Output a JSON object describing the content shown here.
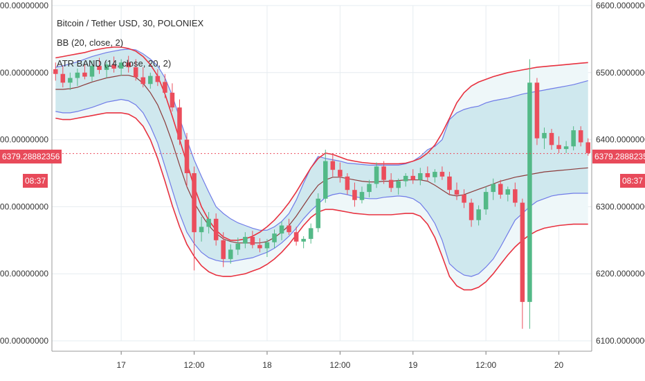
{
  "legend": {
    "title": "Bitcoin / Tether USD, 30, POLONIEX",
    "bb": "BB (20, close, 2)",
    "atr": "ATR BAND (14, close, 20, 2)"
  },
  "price_tag": {
    "value": "6379.28882356",
    "countdown": "08:37"
  },
  "colors": {
    "up": "#53b987",
    "down": "#eb4d5c",
    "bb": "#6f7be8",
    "atr": "#e8313f",
    "basis": "#8b3a3a",
    "bb_fill": "#cfe8ee",
    "atr_fill": "#eef7f9"
  },
  "chart_data": {
    "type": "candlestick",
    "title": "Bitcoin / Tether USD, 30, POLONIEX",
    "ylim": [
      6100,
      6600
    ],
    "y_ticks": [
      6100,
      6200,
      6300,
      6400,
      6500,
      6600
    ],
    "y_tick_labels": [
      "6100.00000000",
      "6200.00000000",
      "6300.00000000",
      "6400.00000000",
      "6500.00000000",
      "6600.00000000"
    ],
    "x_ticks": [
      {
        "index": 9,
        "label": "17"
      },
      {
        "index": 19,
        "label": "12:00"
      },
      {
        "index": 29,
        "label": "18"
      },
      {
        "index": 39,
        "label": "12:00"
      },
      {
        "index": 49,
        "label": "19"
      },
      {
        "index": 59,
        "label": "12:00"
      },
      {
        "index": 69,
        "label": "20"
      }
    ],
    "last_price": 6379.28882356,
    "candles": [
      {
        "o": 6505,
        "h": 6515,
        "l": 6488,
        "c": 6498
      },
      {
        "o": 6498,
        "h": 6510,
        "l": 6478,
        "c": 6485
      },
      {
        "o": 6485,
        "h": 6500,
        "l": 6474,
        "c": 6492
      },
      {
        "o": 6492,
        "h": 6506,
        "l": 6480,
        "c": 6500
      },
      {
        "o": 6500,
        "h": 6512,
        "l": 6490,
        "c": 6494
      },
      {
        "o": 6494,
        "h": 6518,
        "l": 6487,
        "c": 6510
      },
      {
        "o": 6510,
        "h": 6522,
        "l": 6498,
        "c": 6504
      },
      {
        "o": 6504,
        "h": 6516,
        "l": 6492,
        "c": 6512
      },
      {
        "o": 6512,
        "h": 6524,
        "l": 6500,
        "c": 6506
      },
      {
        "o": 6506,
        "h": 6520,
        "l": 6495,
        "c": 6515
      },
      {
        "o": 6515,
        "h": 6525,
        "l": 6500,
        "c": 6508
      },
      {
        "o": 6508,
        "h": 6520,
        "l": 6488,
        "c": 6493
      },
      {
        "o": 6493,
        "h": 6508,
        "l": 6478,
        "c": 6483
      },
      {
        "o": 6483,
        "h": 6500,
        "l": 6476,
        "c": 6495
      },
      {
        "o": 6495,
        "h": 6505,
        "l": 6480,
        "c": 6486
      },
      {
        "o": 6486,
        "h": 6498,
        "l": 6462,
        "c": 6470
      },
      {
        "o": 6470,
        "h": 6484,
        "l": 6442,
        "c": 6448
      },
      {
        "o": 6448,
        "h": 6460,
        "l": 6392,
        "c": 6400
      },
      {
        "o": 6400,
        "h": 6410,
        "l": 6330,
        "c": 6350
      },
      {
        "o": 6350,
        "h": 6360,
        "l": 6205,
        "c": 6262
      },
      {
        "o": 6262,
        "h": 6285,
        "l": 6248,
        "c": 6270
      },
      {
        "o": 6270,
        "h": 6292,
        "l": 6260,
        "c": 6282
      },
      {
        "o": 6282,
        "h": 6290,
        "l": 6242,
        "c": 6250
      },
      {
        "o": 6250,
        "h": 6262,
        "l": 6210,
        "c": 6222
      },
      {
        "o": 6222,
        "h": 6244,
        "l": 6215,
        "c": 6236
      },
      {
        "o": 6236,
        "h": 6254,
        "l": 6228,
        "c": 6245
      },
      {
        "o": 6245,
        "h": 6262,
        "l": 6238,
        "c": 6255
      },
      {
        "o": 6255,
        "h": 6264,
        "l": 6238,
        "c": 6243
      },
      {
        "o": 6243,
        "h": 6253,
        "l": 6232,
        "c": 6238
      },
      {
        "o": 6238,
        "h": 6252,
        "l": 6225,
        "c": 6247
      },
      {
        "o": 6247,
        "h": 6266,
        "l": 6238,
        "c": 6260
      },
      {
        "o": 6260,
        "h": 6278,
        "l": 6250,
        "c": 6272
      },
      {
        "o": 6272,
        "h": 6282,
        "l": 6258,
        "c": 6262
      },
      {
        "o": 6262,
        "h": 6270,
        "l": 6242,
        "c": 6248
      },
      {
        "o": 6248,
        "h": 6256,
        "l": 6238,
        "c": 6252
      },
      {
        "o": 6252,
        "h": 6275,
        "l": 6245,
        "c": 6268
      },
      {
        "o": 6268,
        "h": 6320,
        "l": 6262,
        "c": 6312
      },
      {
        "o": 6312,
        "h": 6385,
        "l": 6306,
        "c": 6368
      },
      {
        "o": 6368,
        "h": 6380,
        "l": 6345,
        "c": 6355
      },
      {
        "o": 6355,
        "h": 6366,
        "l": 6336,
        "c": 6345
      },
      {
        "o": 6345,
        "h": 6350,
        "l": 6318,
        "c": 6325
      },
      {
        "o": 6325,
        "h": 6336,
        "l": 6300,
        "c": 6310
      },
      {
        "o": 6310,
        "h": 6330,
        "l": 6305,
        "c": 6322
      },
      {
        "o": 6322,
        "h": 6340,
        "l": 6314,
        "c": 6334
      },
      {
        "o": 6334,
        "h": 6366,
        "l": 6328,
        "c": 6360
      },
      {
        "o": 6360,
        "h": 6368,
        "l": 6334,
        "c": 6340
      },
      {
        "o": 6340,
        "h": 6350,
        "l": 6322,
        "c": 6328
      },
      {
        "o": 6328,
        "h": 6342,
        "l": 6318,
        "c": 6338
      },
      {
        "o": 6338,
        "h": 6350,
        "l": 6330,
        "c": 6346
      },
      {
        "o": 6346,
        "h": 6356,
        "l": 6334,
        "c": 6340
      },
      {
        "o": 6340,
        "h": 6358,
        "l": 6332,
        "c": 6350
      },
      {
        "o": 6350,
        "h": 6360,
        "l": 6338,
        "c": 6344
      },
      {
        "o": 6344,
        "h": 6356,
        "l": 6336,
        "c": 6352
      },
      {
        "o": 6352,
        "h": 6360,
        "l": 6340,
        "c": 6345
      },
      {
        "o": 6345,
        "h": 6352,
        "l": 6318,
        "c": 6325
      },
      {
        "o": 6325,
        "h": 6336,
        "l": 6310,
        "c": 6318
      },
      {
        "o": 6318,
        "h": 6326,
        "l": 6298,
        "c": 6306
      },
      {
        "o": 6306,
        "h": 6312,
        "l": 6270,
        "c": 6280
      },
      {
        "o": 6280,
        "h": 6302,
        "l": 6272,
        "c": 6296
      },
      {
        "o": 6296,
        "h": 6330,
        "l": 6288,
        "c": 6322
      },
      {
        "o": 6322,
        "h": 6342,
        "l": 6310,
        "c": 6334
      },
      {
        "o": 6334,
        "h": 6340,
        "l": 6312,
        "c": 6318
      },
      {
        "o": 6318,
        "h": 6330,
        "l": 6308,
        "c": 6326
      },
      {
        "o": 6326,
        "h": 6336,
        "l": 6300,
        "c": 6306
      },
      {
        "o": 6306,
        "h": 6312,
        "l": 6118,
        "c": 6158
      },
      {
        "o": 6158,
        "h": 6520,
        "l": 6118,
        "c": 6485
      },
      {
        "o": 6485,
        "h": 6492,
        "l": 6392,
        "c": 6402
      },
      {
        "o": 6402,
        "h": 6418,
        "l": 6386,
        "c": 6410
      },
      {
        "o": 6410,
        "h": 6416,
        "l": 6385,
        "c": 6392
      },
      {
        "o": 6392,
        "h": 6405,
        "l": 6380,
        "c": 6386
      },
      {
        "o": 6386,
        "h": 6398,
        "l": 6380,
        "c": 6390
      },
      {
        "o": 6390,
        "h": 6420,
        "l": 6384,
        "c": 6414
      },
      {
        "o": 6414,
        "h": 6420,
        "l": 6390,
        "c": 6396
      },
      {
        "o": 6396,
        "h": 6402,
        "l": 6376,
        "c": 6380
      }
    ],
    "bb_upper": [
      6508,
      6510,
      6513,
      6516,
      6520,
      6524,
      6527,
      6530,
      6532,
      6534,
      6535,
      6534,
      6528,
      6520,
      6510,
      6492,
      6466,
      6432,
      6400,
      6370,
      6345,
      6322,
      6300,
      6290,
      6282,
      6276,
      6272,
      6268,
      6265,
      6265,
      6270,
      6278,
      6290,
      6310,
      6335,
      6358,
      6375,
      6372,
      6370,
      6368,
      6365,
      6364,
      6363,
      6362,
      6362,
      6362,
      6362,
      6362,
      6364,
      6368,
      6375,
      6385,
      6390,
      6400,
      6430,
      6440,
      6445,
      6448,
      6450,
      6455,
      6458,
      6460,
      6462,
      6465,
      6468,
      6470,
      6472,
      6474,
      6476,
      6478,
      6480,
      6482,
      6485,
      6488
    ],
    "bb_lower": [
      6442,
      6440,
      6440,
      6442,
      6445,
      6448,
      6452,
      6456,
      6458,
      6460,
      6458,
      6452,
      6440,
      6420,
      6395,
      6360,
      6325,
      6290,
      6262,
      6245,
      6232,
      6224,
      6220,
      6218,
      6218,
      6220,
      6222,
      6224,
      6228,
      6232,
      6238,
      6246,
      6256,
      6268,
      6282,
      6294,
      6304,
      6314,
      6318,
      6320,
      6318,
      6315,
      6313,
      6312,
      6312,
      6314,
      6315,
      6316,
      6315,
      6312,
      6305,
      6292,
      6275,
      6250,
      6215,
      6205,
      6198,
      6196,
      6200,
      6210,
      6222,
      6240,
      6260,
      6280,
      6290,
      6300,
      6308,
      6312,
      6316,
      6318,
      6319,
      6320,
      6320,
      6320
    ],
    "atr_upper": [
      6522,
      6524,
      6526,
      6528,
      6530,
      6533,
      6535,
      6537,
      6538,
      6538,
      6536,
      6532,
      6524,
      6512,
      6495,
      6468,
      6435,
      6400,
      6365,
      6330,
      6300,
      6280,
      6265,
      6255,
      6250,
      6250,
      6252,
      6256,
      6262,
      6270,
      6280,
      6292,
      6306,
      6322,
      6340,
      6358,
      6372,
      6380,
      6378,
      6374,
      6370,
      6368,
      6366,
      6365,
      6364,
      6364,
      6364,
      6364,
      6365,
      6368,
      6372,
      6380,
      6392,
      6410,
      6432,
      6455,
      6470,
      6480,
      6486,
      6490,
      6494,
      6497,
      6500,
      6502,
      6504,
      6506,
      6508,
      6509,
      6510,
      6511,
      6512,
      6513,
      6514,
      6515
    ],
    "atr_lower": [
      6432,
      6430,
      6430,
      6432,
      6434,
      6436,
      6438,
      6440,
      6440,
      6440,
      6438,
      6432,
      6420,
      6400,
      6372,
      6338,
      6302,
      6270,
      6244,
      6226,
      6212,
      6203,
      6198,
      6196,
      6196,
      6198,
      6200,
      6204,
      6208,
      6214,
      6222,
      6232,
      6244,
      6258,
      6272,
      6284,
      6292,
      6296,
      6296,
      6294,
      6292,
      6290,
      6289,
      6288,
      6288,
      6288,
      6288,
      6289,
      6290,
      6290,
      6286,
      6274,
      6254,
      6226,
      6196,
      6182,
      6176,
      6176,
      6180,
      6188,
      6200,
      6214,
      6228,
      6240,
      6250,
      6258,
      6264,
      6268,
      6270,
      6272,
      6273,
      6274,
      6274,
      6274
    ],
    "basis": [
      6475,
      6475,
      6476,
      6478,
      6482,
      6486,
      6489,
      6492,
      6494,
      6496,
      6496,
      6493,
      6484,
      6470,
      6452,
      6426,
      6396,
      6362,
      6330,
      6306,
      6288,
      6272,
      6260,
      6252,
      6248,
      6246,
      6246,
      6246,
      6246,
      6248,
      6254,
      6262,
      6272,
      6286,
      6302,
      6318,
      6332,
      6340,
      6344,
      6344,
      6342,
      6340,
      6338,
      6337,
      6337,
      6338,
      6338,
      6339,
      6340,
      6340,
      6340,
      6338,
      6332,
      6325,
      6318,
      6316,
      6318,
      6322,
      6326,
      6330,
      6334,
      6338,
      6341,
      6344,
      6346,
      6348,
      6350,
      6352,
      6353,
      6354,
      6355,
      6356,
      6357,
      6358
    ]
  }
}
